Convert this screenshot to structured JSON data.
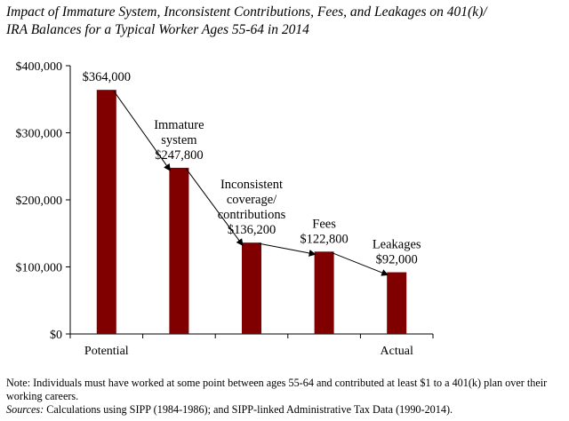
{
  "title_lines": [
    "Impact of Immature System, Inconsistent Contributions, Fees, and Leakages on 401(k)/",
    "IRA Balances for a Typical Worker Ages 55-64 in 2014"
  ],
  "chart_data": {
    "type": "bar",
    "categories": [
      "Potential",
      "Immature system",
      "Inconsistent coverage/ contributions",
      "Fees",
      "Leakages"
    ],
    "category_axis_labels": [
      "Potential",
      "",
      "",
      "",
      "Actual"
    ],
    "values": [
      364000,
      247800,
      136200,
      122800,
      92000
    ],
    "value_labels": [
      "$364,000",
      "$247,800",
      "$136,200",
      "$122,800",
      "$92,000"
    ],
    "annotations": [
      [],
      [
        "Immature",
        "system"
      ],
      [
        "Inconsistent",
        "coverage/",
        "contributions"
      ],
      [
        "Fees"
      ],
      [
        "Leakages"
      ]
    ],
    "y_ticks": [
      0,
      100000,
      200000,
      300000,
      400000
    ],
    "y_tick_labels": [
      "$0",
      "$100,000",
      "$200,000",
      "$300,000",
      "$400,000"
    ],
    "ylim": [
      0,
      400000
    ],
    "grid": false,
    "legend": "none",
    "bar_color": "#800000",
    "connector_arrows": true
  },
  "notes": {
    "note": "Note: Individuals must have worked at some point between ages 55-64 and contributed at least $1 to a 401(k) plan over their working careers.",
    "sources_label": "Sources:",
    "sources_text": " Calculations using SIPP (1984-1986); and SIPP-linked Administrative Tax Data (1990-2014)."
  }
}
